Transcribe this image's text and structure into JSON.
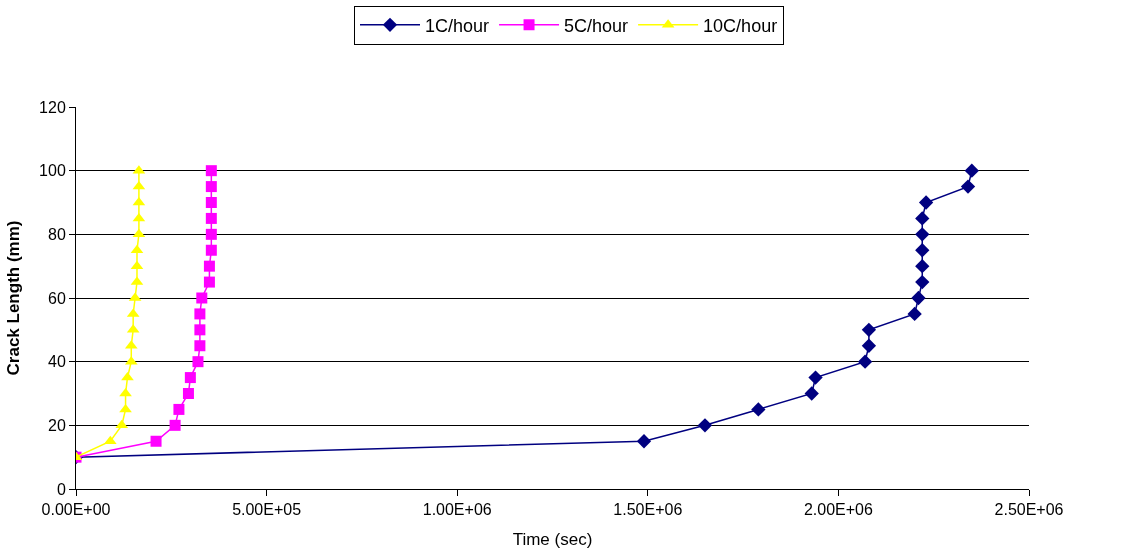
{
  "chart_data": {
    "type": "line",
    "xlabel": "Time (sec)",
    "ylabel": "Crack Length (mm)",
    "xlim": [
      0,
      2500000
    ],
    "xticks": [
      {
        "value": 0,
        "label": "0.00E+00"
      },
      {
        "value": 500000,
        "label": "5.00E+05"
      },
      {
        "value": 1000000,
        "label": "1.00E+06"
      },
      {
        "value": 1500000,
        "label": "1.50E+06"
      },
      {
        "value": 2000000,
        "label": "2.00E+06"
      },
      {
        "value": 2500000,
        "label": "2.50E+06"
      }
    ],
    "ylim": [
      0,
      120
    ],
    "yticks": [
      0,
      20,
      40,
      60,
      80,
      100,
      120
    ],
    "grid": "y",
    "legend": "top",
    "series": [
      {
        "name": "1C/hour",
        "color": "#000080",
        "marker": "diamond",
        "x": [
          0,
          1490000,
          1650000,
          1790000,
          1930000,
          1940000,
          2070000,
          2080000,
          2080000,
          2200000,
          2210000,
          2220000,
          2220000,
          2220000,
          2220000,
          2220000,
          2230000,
          2340000,
          2350000
        ],
        "values": [
          10,
          15,
          20,
          25,
          30,
          35,
          40,
          45,
          50,
          55,
          60,
          65,
          70,
          75,
          80,
          85,
          90,
          95,
          100
        ]
      },
      {
        "name": "5C/hour",
        "color": "#ff00ff",
        "marker": "square",
        "x": [
          0,
          210000,
          260000,
          270000,
          295000,
          300000,
          320000,
          325000,
          325000,
          325000,
          330000,
          350000,
          350000,
          355000,
          355000,
          355000,
          355000,
          355000,
          355000
        ],
        "values": [
          10,
          15,
          20,
          25,
          30,
          35,
          40,
          45,
          50,
          55,
          60,
          65,
          70,
          75,
          80,
          85,
          90,
          95,
          100
        ]
      },
      {
        "name": "10C/hour",
        "color": "#ffff00",
        "marker": "triangle",
        "x": [
          0,
          90000,
          120000,
          130000,
          130000,
          135000,
          145000,
          145000,
          150000,
          150000,
          155000,
          160000,
          160000,
          160000,
          165000,
          165000,
          165000,
          165000,
          165000
        ],
        "values": [
          10,
          15,
          20,
          25,
          30,
          35,
          40,
          45,
          50,
          55,
          60,
          65,
          70,
          75,
          80,
          85,
          90,
          95,
          100
        ]
      }
    ]
  }
}
